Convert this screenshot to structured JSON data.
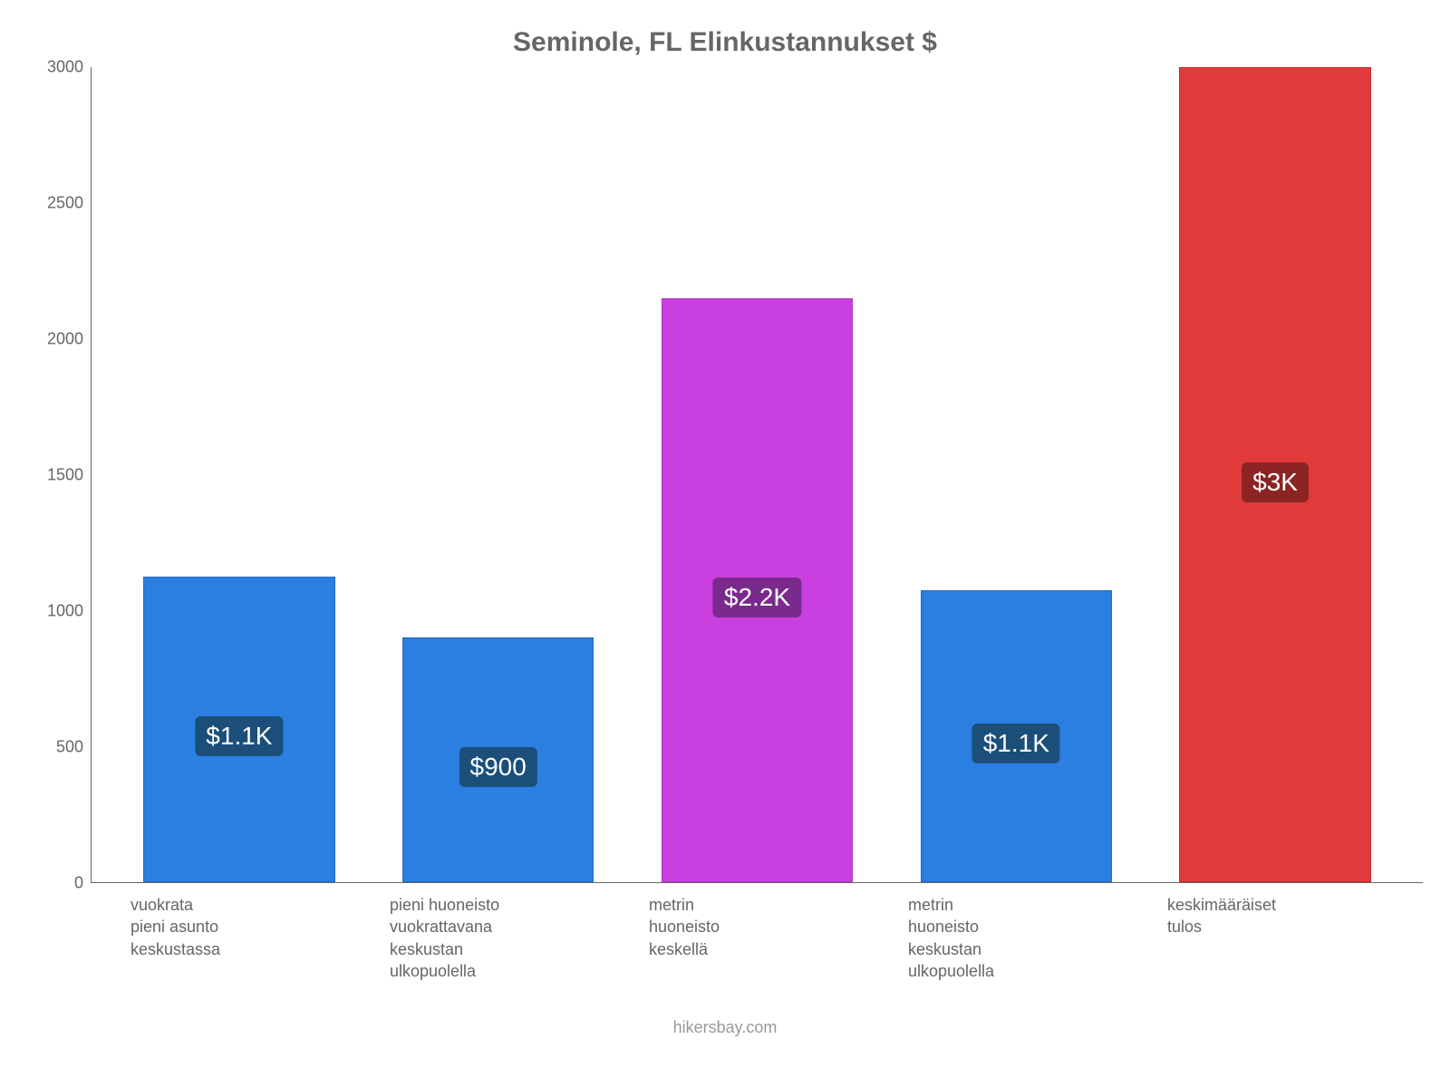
{
  "chart": {
    "type": "bar",
    "title": "Seminole, FL Elinkustannukset $",
    "title_fontsize": 30,
    "title_color": "#666666",
    "background_color": "#ffffff",
    "axis_color": "#666666",
    "tick_fontsize": 18,
    "tick_color": "#666666",
    "y": {
      "min": 0,
      "max": 3000,
      "step": 500
    },
    "bar_width_ratio": 0.74,
    "bars": [
      {
        "category_lines": [
          "vuokrata",
          "pieni asunto",
          "keskustassa"
        ],
        "value": 1125,
        "display": "$1.1K",
        "fill": "#2a7fe0",
        "label_bg": "#1b4f7a",
        "label_color": "#ffffff"
      },
      {
        "category_lines": [
          "pieni huoneisto",
          "vuokrattavana",
          "keskustan",
          "ulkopuolella"
        ],
        "value": 900,
        "display": "$900",
        "fill": "#2a7fe0",
        "label_bg": "#1b4f7a",
        "label_color": "#ffffff"
      },
      {
        "category_lines": [
          "metrin",
          "huoneisto",
          "keskellä"
        ],
        "value": 2150,
        "display": "$2.2K",
        "fill": "#c93fe0",
        "label_bg": "#7a2a8c",
        "label_color": "#ffffff"
      },
      {
        "category_lines": [
          "metrin",
          "huoneisto",
          "keskustan",
          "ulkopuolella"
        ],
        "value": 1075,
        "display": "$1.1K",
        "fill": "#2a7fe0",
        "label_bg": "#1b4f7a",
        "label_color": "#ffffff"
      },
      {
        "category_lines": [
          "keskimääräiset",
          "tulos"
        ],
        "value": 3000,
        "display": "$3K",
        "fill": "#e03a3a",
        "label_bg": "#8c2424",
        "label_color": "#ffffff"
      }
    ],
    "label_fontsize": 28,
    "label_radius": 6,
    "xlabel_fontsize": 18,
    "xlabel_color": "#666666",
    "footer": "hikersbay.com",
    "footer_color": "#999999",
    "footer_fontsize": 18
  }
}
